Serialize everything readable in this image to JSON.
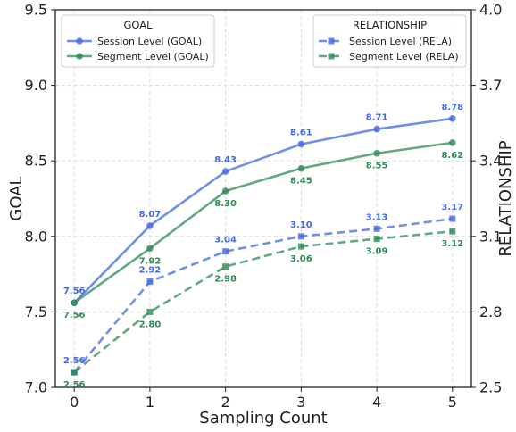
{
  "chart_data": {
    "type": "line",
    "x": [
      0,
      1,
      2,
      3,
      4,
      5
    ],
    "xlabel": "Sampling Count",
    "ylabel_left": "GOAL",
    "ylabel_right": "RELATIONSHIP",
    "ylim_left": [
      7.0,
      9.5
    ],
    "ylim_right": [
      2.5,
      4.0
    ],
    "yticks_left": [
      "7.0",
      "7.5",
      "8.0",
      "8.5",
      "9.0",
      "9.5"
    ],
    "yticks_right": [
      "2.5",
      "2.8",
      "3.1",
      "3.4",
      "3.7",
      "4.0"
    ],
    "grid": true,
    "series": [
      {
        "name": "Session Level (GOAL)",
        "axis": "left",
        "values": [
          7.56,
          8.07,
          8.43,
          8.61,
          8.71,
          8.78
        ],
        "labels": [
          "7.56",
          "8.07",
          "8.43",
          "8.61",
          "8.71",
          "8.78"
        ],
        "color": "#4169e1",
        "marker": "circle",
        "dash": false,
        "label_pos": "above"
      },
      {
        "name": "Segment Level (GOAL)",
        "axis": "left",
        "values": [
          7.56,
          7.92,
          8.3,
          8.45,
          8.55,
          8.62
        ],
        "labels": [
          "7.56",
          "7.92",
          "8.30",
          "8.45",
          "8.55",
          "8.62"
        ],
        "color": "#2e8b57",
        "marker": "circle",
        "dash": false,
        "label_pos": "below"
      },
      {
        "name": "Session Level (RELA)",
        "axis": "right",
        "values": [
          2.56,
          2.92,
          3.04,
          3.1,
          3.13,
          3.17
        ],
        "labels": [
          "2.56",
          "2.92",
          "3.04",
          "3.10",
          "3.13",
          "3.17"
        ],
        "color": "#4169e1",
        "marker": "square",
        "dash": true,
        "label_pos": "above"
      },
      {
        "name": "Segment Level (RELA)",
        "axis": "right",
        "values": [
          2.56,
          2.8,
          2.98,
          3.06,
          3.09,
          3.12
        ],
        "labels": [
          "2.56",
          "2.80",
          "2.98",
          "3.06",
          "3.09",
          "3.12"
        ],
        "color": "#2e8b57",
        "marker": "square",
        "dash": true,
        "label_pos": "below"
      }
    ],
    "legends": [
      {
        "title": "GOAL",
        "placement": "top-left",
        "entries": [
          "Session Level (GOAL)",
          "Segment Level (GOAL)"
        ]
      },
      {
        "title": "RELATIONSHIP",
        "placement": "top-right",
        "entries": [
          "Session Level (RELA)",
          "Segment Level (RELA)"
        ]
      }
    ]
  }
}
